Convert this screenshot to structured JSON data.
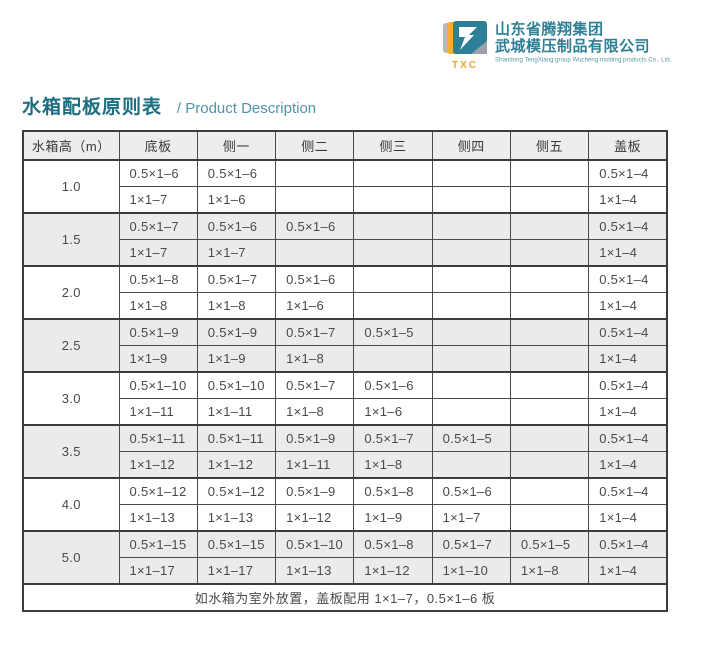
{
  "logo": {
    "mark_text": "TXC",
    "company_cn_line1": "山东省腾翔集团",
    "company_cn_line2": "武城模压制品有限公司",
    "company_en": "Shandong TengXiang group Wucheng molding products Co., Ltd.",
    "colors": {
      "teal": "#2c7f96",
      "yellow": "#f2b02c",
      "gray": "#a8aeb4",
      "orange": "#f0a22e"
    }
  },
  "header": {
    "title_cn": "水箱配板原则表",
    "title_en": "/ Product Description",
    "title_color": "#1d6e80"
  },
  "table": {
    "columns": [
      "水箱高（m）",
      "底板",
      "侧一",
      "侧二",
      "侧三",
      "侧四",
      "侧五",
      "盖板"
    ],
    "groups": [
      {
        "height": "1.0",
        "rows": [
          [
            "0.5×1–6",
            "0.5×1–6",
            "",
            "",
            "",
            "",
            "0.5×1–4"
          ],
          [
            "1×1–7",
            "1×1–6",
            "",
            "",
            "",
            "",
            "1×1–4"
          ]
        ]
      },
      {
        "height": "1.5",
        "rows": [
          [
            "0.5×1–7",
            "0.5×1–6",
            "0.5×1–6",
            "",
            "",
            "",
            "0.5×1–4"
          ],
          [
            "1×1–7",
            "1×1–7",
            "",
            "",
            "",
            "",
            "1×1–4"
          ]
        ]
      },
      {
        "height": "2.0",
        "rows": [
          [
            "0.5×1–8",
            "0.5×1–7",
            "0.5×1–6",
            "",
            "",
            "",
            "0.5×1–4"
          ],
          [
            "1×1–8",
            "1×1–8",
            "1×1–6",
            "",
            "",
            "",
            "1×1–4"
          ]
        ]
      },
      {
        "height": "2.5",
        "rows": [
          [
            "0.5×1–9",
            "0.5×1–9",
            "0.5×1–7",
            "0.5×1–5",
            "",
            "",
            "0.5×1–4"
          ],
          [
            "1×1–9",
            "1×1–9",
            "1×1–8",
            "",
            "",
            "",
            "1×1–4"
          ]
        ]
      },
      {
        "height": "3.0",
        "rows": [
          [
            "0.5×1–10",
            "0.5×1–10",
            "0.5×1–7",
            "0.5×1–6",
            "",
            "",
            "0.5×1–4"
          ],
          [
            "1×1–11",
            "1×1–11",
            "1×1–8",
            "1×1–6",
            "",
            "",
            "1×1–4"
          ]
        ]
      },
      {
        "height": "3.5",
        "rows": [
          [
            "0.5×1–11",
            "0.5×1–11",
            "0.5×1–9",
            "0.5×1–7",
            "0.5×1–5",
            "",
            "0.5×1–4"
          ],
          [
            "1×1–12",
            "1×1–12",
            "1×1–11",
            "1×1–8",
            "",
            "",
            "1×1–4"
          ]
        ]
      },
      {
        "height": "4.0",
        "rows": [
          [
            "0.5×1–12",
            "0.5×1–12",
            "0.5×1–9",
            "0.5×1–8",
            "0.5×1–6",
            "",
            "0.5×1–4"
          ],
          [
            "1×1–13",
            "1×1–13",
            "1×1–12",
            "1×1–9",
            "1×1–7",
            "",
            "1×1–4"
          ]
        ]
      },
      {
        "height": "5.0",
        "rows": [
          [
            "0.5×1–15",
            "0.5×1–15",
            "0.5×1–10",
            "0.5×1–8",
            "0.5×1–7",
            "0.5×1–5",
            "0.5×1–4"
          ],
          [
            "1×1–17",
            "1×1–17",
            "1×1–13",
            "1×1–12",
            "1×1–10",
            "1×1–8",
            "1×1–4"
          ]
        ]
      }
    ],
    "footnote": "如水箱为室外放置，盖板配用 1×1–7，0.5×1–6 板"
  }
}
